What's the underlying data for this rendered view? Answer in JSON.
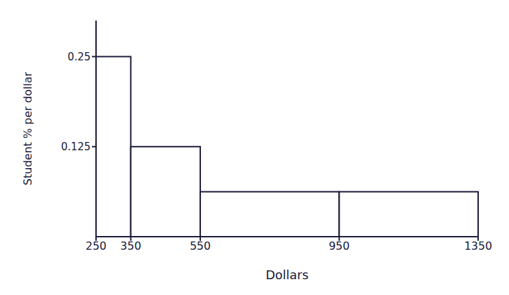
{
  "chart_data": {
    "type": "histogram",
    "bins": [
      250,
      350,
      550,
      950,
      1350
    ],
    "values": [
      0.25,
      0.125,
      0.0625,
      0.0625
    ],
    "x_label": "Dollars",
    "y_label": "Student % per dollar",
    "xlim": [
      250,
      1350
    ],
    "xticks": [
      250,
      350,
      550,
      950,
      1350
    ],
    "ylim": [
      0,
      0.3
    ],
    "yticks": [
      0.125,
      0.25
    ],
    "color": "#1a1a3a",
    "grid": false
  }
}
